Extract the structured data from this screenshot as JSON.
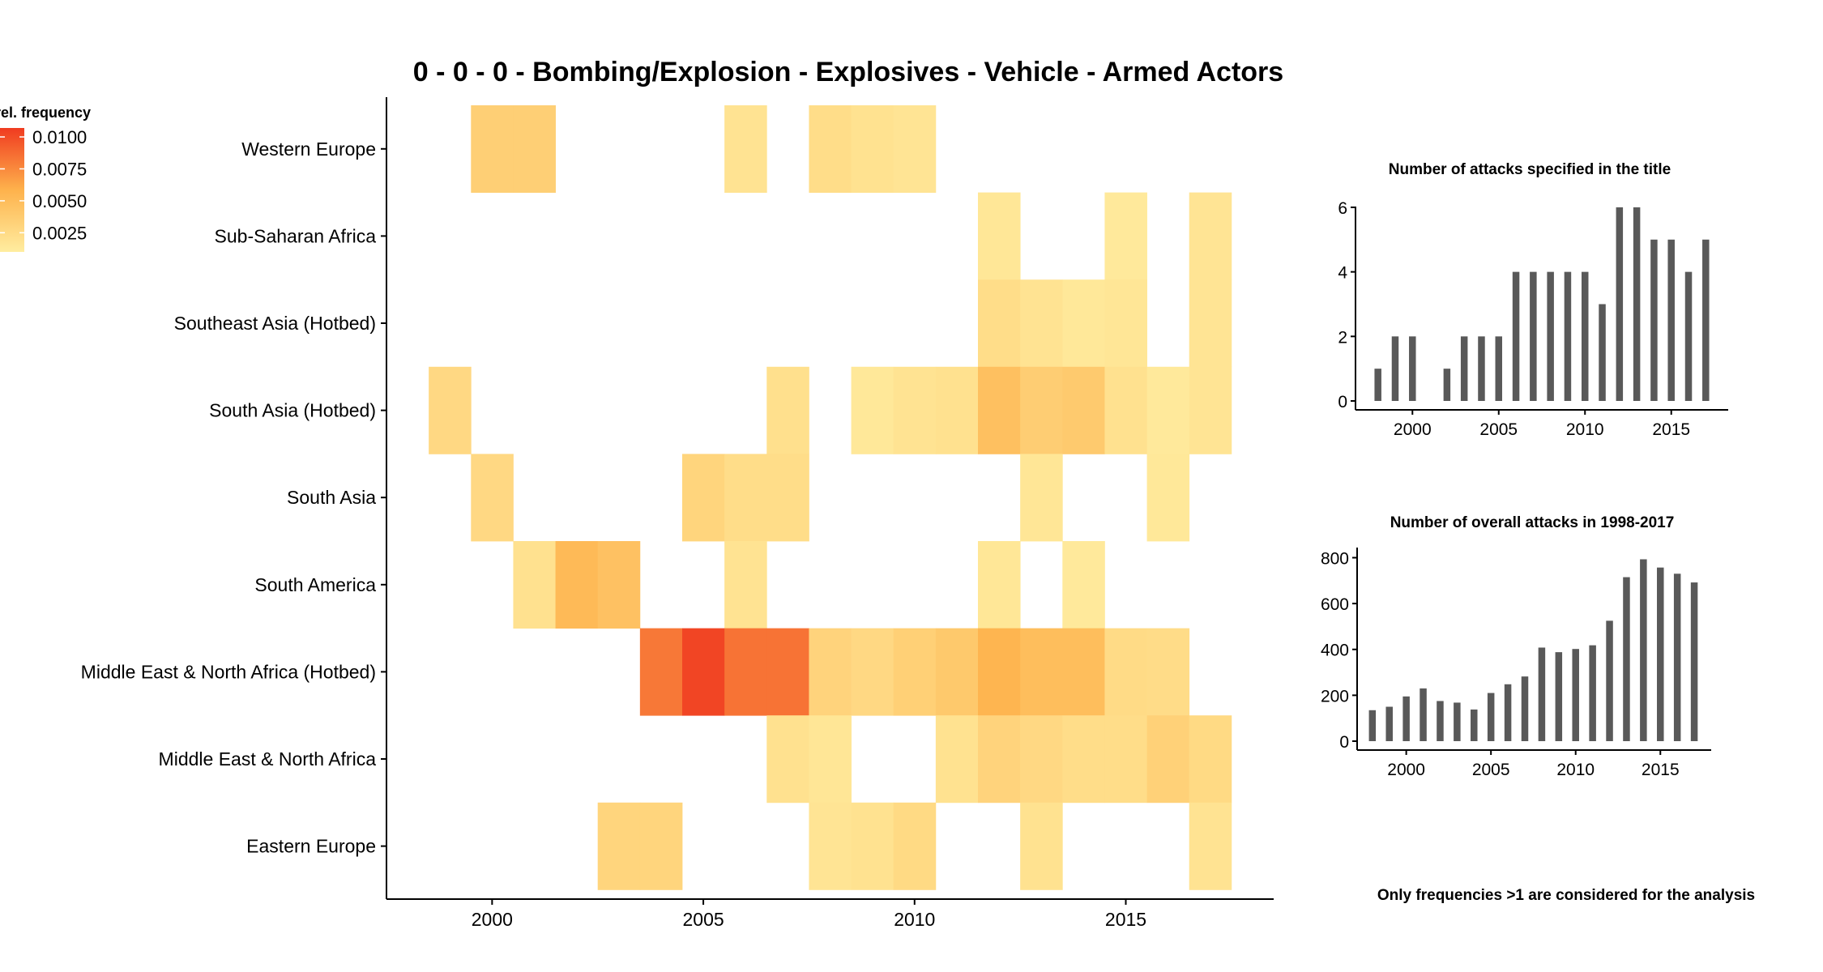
{
  "colors": {
    "low": "#FFEDA0",
    "mid": "#FEB24C",
    "high": "#F03B20",
    "bar": "#595959",
    "axis": "#000000"
  },
  "footnote": "Only frequencies >1 are considered for the analysis",
  "chart_data": [
    {
      "type": "heatmap",
      "title": "0 - 0 - 0 - Bombing/Explosion - Explosives - Vehicle - Armed Actors",
      "legend_title": "rel. frequency",
      "legend_ticks": [
        "0.0100",
        "0.0075",
        "0.0050",
        "0.0025"
      ],
      "legend_tick_values": [
        0.01,
        0.0075,
        0.005,
        0.0025
      ],
      "legend_range": [
        0.001,
        0.0107
      ],
      "legend_position": "top-left",
      "xlim": [
        1997.5,
        2018.5
      ],
      "x_ticks": [
        2000,
        2005,
        2010,
        2015
      ],
      "regions": [
        "Western Europe",
        "Sub-Saharan Africa",
        "Southeast Asia (Hotbed)",
        "South Asia (Hotbed)",
        "South Asia",
        "South America",
        "Middle East & North Africa (Hotbed)",
        "Middle East & North Africa",
        "Eastern Europe"
      ],
      "cells": [
        {
          "region": "Western Europe",
          "year": 2000,
          "value": 0.0035
        },
        {
          "region": "Western Europe",
          "year": 2001,
          "value": 0.0035
        },
        {
          "region": "Western Europe",
          "year": 2006,
          "value": 0.0018
        },
        {
          "region": "Western Europe",
          "year": 2008,
          "value": 0.0023
        },
        {
          "region": "Western Europe",
          "year": 2009,
          "value": 0.0019
        },
        {
          "region": "Western Europe",
          "year": 2010,
          "value": 0.0017
        },
        {
          "region": "Sub-Saharan Africa",
          "year": 2012,
          "value": 0.0015
        },
        {
          "region": "Sub-Saharan Africa",
          "year": 2015,
          "value": 0.0013
        },
        {
          "region": "Sub-Saharan Africa",
          "year": 2017,
          "value": 0.0017
        },
        {
          "region": "Southeast Asia (Hotbed)",
          "year": 2012,
          "value": 0.0023
        },
        {
          "region": "Southeast Asia (Hotbed)",
          "year": 2013,
          "value": 0.0018
        },
        {
          "region": "Southeast Asia (Hotbed)",
          "year": 2014,
          "value": 0.0014
        },
        {
          "region": "Southeast Asia (Hotbed)",
          "year": 2015,
          "value": 0.0016
        },
        {
          "region": "Southeast Asia (Hotbed)",
          "year": 2017,
          "value": 0.0017
        },
        {
          "region": "South Asia (Hotbed)",
          "year": 1999,
          "value": 0.0027
        },
        {
          "region": "South Asia (Hotbed)",
          "year": 2007,
          "value": 0.0021
        },
        {
          "region": "South Asia (Hotbed)",
          "year": 2009,
          "value": 0.0014
        },
        {
          "region": "South Asia (Hotbed)",
          "year": 2010,
          "value": 0.0018
        },
        {
          "region": "South Asia (Hotbed)",
          "year": 2011,
          "value": 0.002
        },
        {
          "region": "South Asia (Hotbed)",
          "year": 2012,
          "value": 0.0047
        },
        {
          "region": "South Asia (Hotbed)",
          "year": 2013,
          "value": 0.0036
        },
        {
          "region": "South Asia (Hotbed)",
          "year": 2014,
          "value": 0.0039
        },
        {
          "region": "South Asia (Hotbed)",
          "year": 2015,
          "value": 0.002
        },
        {
          "region": "South Asia (Hotbed)",
          "year": 2016,
          "value": 0.0013
        },
        {
          "region": "South Asia (Hotbed)",
          "year": 2017,
          "value": 0.0017
        },
        {
          "region": "South Asia",
          "year": 2000,
          "value": 0.0027
        },
        {
          "region": "South Asia",
          "year": 2005,
          "value": 0.003
        },
        {
          "region": "South Asia",
          "year": 2006,
          "value": 0.0023
        },
        {
          "region": "South Asia",
          "year": 2007,
          "value": 0.0023
        },
        {
          "region": "South Asia",
          "year": 2013,
          "value": 0.0016
        },
        {
          "region": "South Asia",
          "year": 2016,
          "value": 0.0014
        },
        {
          "region": "South America",
          "year": 2001,
          "value": 0.002
        },
        {
          "region": "South America",
          "year": 2002,
          "value": 0.0052
        },
        {
          "region": "South America",
          "year": 2003,
          "value": 0.0046
        },
        {
          "region": "South America",
          "year": 2006,
          "value": 0.0018
        },
        {
          "region": "South America",
          "year": 2012,
          "value": 0.0015
        },
        {
          "region": "South America",
          "year": 2014,
          "value": 0.0013
        },
        {
          "region": "Middle East & North Africa (Hotbed)",
          "year": 2004,
          "value": 0.0082
        },
        {
          "region": "Middle East & North Africa (Hotbed)",
          "year": 2005,
          "value": 0.0103
        },
        {
          "region": "Middle East & North Africa (Hotbed)",
          "year": 2006,
          "value": 0.0084
        },
        {
          "region": "Middle East & North Africa (Hotbed)",
          "year": 2007,
          "value": 0.0084
        },
        {
          "region": "Middle East & North Africa (Hotbed)",
          "year": 2008,
          "value": 0.0031
        },
        {
          "region": "Middle East & North Africa (Hotbed)",
          "year": 2009,
          "value": 0.0027
        },
        {
          "region": "Middle East & North Africa (Hotbed)",
          "year": 2010,
          "value": 0.0034
        },
        {
          "region": "Middle East & North Africa (Hotbed)",
          "year": 2011,
          "value": 0.004
        },
        {
          "region": "Middle East & North Africa (Hotbed)",
          "year": 2012,
          "value": 0.0056
        },
        {
          "region": "Middle East & North Africa (Hotbed)",
          "year": 2013,
          "value": 0.0049
        },
        {
          "region": "Middle East & North Africa (Hotbed)",
          "year": 2014,
          "value": 0.0049
        },
        {
          "region": "Middle East & North Africa (Hotbed)",
          "year": 2015,
          "value": 0.0025
        },
        {
          "region": "Middle East & North Africa (Hotbed)",
          "year": 2016,
          "value": 0.0024
        },
        {
          "region": "Middle East & North Africa",
          "year": 2007,
          "value": 0.002
        },
        {
          "region": "Middle East & North Africa",
          "year": 2008,
          "value": 0.0016
        },
        {
          "region": "Middle East & North Africa",
          "year": 2011,
          "value": 0.0019
        },
        {
          "region": "Middle East & North Africa",
          "year": 2012,
          "value": 0.0031
        },
        {
          "region": "Middle East & North Africa",
          "year": 2013,
          "value": 0.0027
        },
        {
          "region": "Middle East & North Africa",
          "year": 2014,
          "value": 0.0023
        },
        {
          "region": "Middle East & North Africa",
          "year": 2015,
          "value": 0.0023
        },
        {
          "region": "Middle East & North Africa",
          "year": 2016,
          "value": 0.0033
        },
        {
          "region": "Middle East & North Africa",
          "year": 2017,
          "value": 0.0026
        },
        {
          "region": "Eastern Europe",
          "year": 2003,
          "value": 0.003
        },
        {
          "region": "Eastern Europe",
          "year": 2004,
          "value": 0.003
        },
        {
          "region": "Eastern Europe",
          "year": 2008,
          "value": 0.0017
        },
        {
          "region": "Eastern Europe",
          "year": 2009,
          "value": 0.0019
        },
        {
          "region": "Eastern Europe",
          "year": 2010,
          "value": 0.0026
        },
        {
          "region": "Eastern Europe",
          "year": 2013,
          "value": 0.0019
        },
        {
          "region": "Eastern Europe",
          "year": 2017,
          "value": 0.0018
        }
      ]
    },
    {
      "type": "bar",
      "title": "Number of attacks specified in the title",
      "x": [
        1998,
        1999,
        2000,
        2001,
        2002,
        2003,
        2004,
        2005,
        2006,
        2007,
        2008,
        2009,
        2010,
        2011,
        2012,
        2013,
        2014,
        2015,
        2016,
        2017
      ],
      "values": [
        1,
        2,
        2,
        0,
        1,
        2,
        2,
        2,
        4,
        4,
        4,
        4,
        4,
        3,
        6,
        6,
        5,
        5,
        4,
        5
      ],
      "xlim": [
        1996.7,
        2018.3
      ],
      "ylim": [
        0,
        6.3
      ],
      "x_ticks": [
        2000,
        2005,
        2010,
        2015
      ],
      "y_ticks": [
        0,
        2,
        4,
        6
      ]
    },
    {
      "type": "bar",
      "title": "Number of overall attacks in 1998-2017",
      "x": [
        1998,
        1999,
        2000,
        2001,
        2002,
        2003,
        2004,
        2005,
        2006,
        2007,
        2008,
        2009,
        2010,
        2011,
        2012,
        2013,
        2014,
        2015,
        2016,
        2017
      ],
      "values": [
        135,
        150,
        195,
        230,
        175,
        168,
        138,
        210,
        248,
        282,
        408,
        388,
        402,
        418,
        525,
        715,
        793,
        757,
        730,
        692
      ],
      "xlim": [
        1997.1,
        2018.0
      ],
      "ylim": [
        0,
        830
      ],
      "x_ticks": [
        2000,
        2005,
        2010,
        2015
      ],
      "y_ticks": [
        0,
        200,
        400,
        600,
        800
      ]
    }
  ]
}
